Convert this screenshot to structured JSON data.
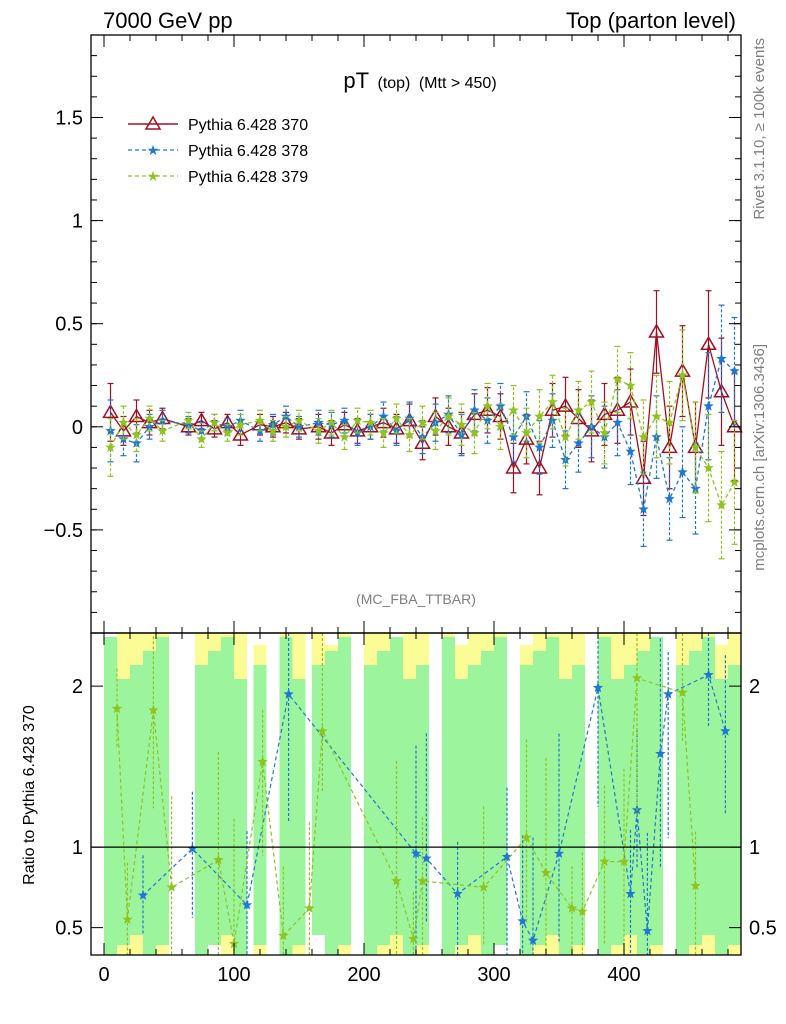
{
  "header": {
    "left": "7000 GeV pp",
    "right": "Top (parton level)"
  },
  "side_labels": {
    "rivet": "Rivet 3.1.10, ≥ 100k events",
    "mcplots": "mcplots.cern.ch [arXiv:1306.3436]"
  },
  "analysis_tag": "(MC_FBA_TTBAR)",
  "chart_data": [
    {
      "type": "line",
      "title": "pT (top) (Mtt > 450)",
      "title_main": "pT",
      "title_sub1": "(top)",
      "title_sub2": "(Mtt > 450)",
      "xlim": [
        -10,
        490
      ],
      "ylim": [
        -1.0,
        1.9
      ],
      "xticks": [
        0,
        100,
        200,
        300,
        400
      ],
      "yticks": [
        -0.5,
        0,
        0.5,
        1,
        1.5
      ],
      "ytick_labels": [
        "−0.5",
        "0",
        "0.5",
        "1",
        "1.5"
      ],
      "legend": "top-left",
      "series": [
        {
          "name": "Pythia 6.428 370",
          "color": "#a01020",
          "marker": "open-triangle",
          "x": [
            5,
            15,
            25,
            35,
            45,
            65,
            75,
            85,
            95,
            105,
            120,
            130,
            140,
            150,
            165,
            175,
            185,
            195,
            205,
            215,
            225,
            235,
            245,
            255,
            265,
            275,
            285,
            295,
            305,
            315,
            325,
            335,
            345,
            355,
            365,
            375,
            385,
            395,
            405,
            415,
            425,
            435,
            445,
            455,
            465,
            475,
            485
          ],
          "y": [
            0.07,
            -0.02,
            0.05,
            0.02,
            0.04,
            0.0,
            0.03,
            -0.01,
            0.02,
            -0.04,
            0.01,
            0.0,
            0.02,
            -0.01,
            0.0,
            -0.03,
            0.01,
            -0.02,
            0.0,
            0.02,
            -0.01,
            0.03,
            -0.08,
            0.05,
            0.0,
            -0.03,
            0.06,
            0.08,
            0.05,
            -0.2,
            -0.06,
            -0.2,
            0.08,
            0.1,
            0.04,
            -0.02,
            0.06,
            0.08,
            0.12,
            -0.25,
            0.46,
            -0.1,
            0.27,
            -0.1,
            0.4,
            0.17,
            0.0
          ],
          "yerr": [
            0.14,
            0.07,
            0.08,
            0.06,
            0.05,
            0.04,
            0.04,
            0.04,
            0.04,
            0.05,
            0.05,
            0.05,
            0.05,
            0.05,
            0.06,
            0.06,
            0.06,
            0.06,
            0.06,
            0.07,
            0.07,
            0.08,
            0.08,
            0.09,
            0.09,
            0.1,
            0.1,
            0.11,
            0.11,
            0.12,
            0.12,
            0.13,
            0.13,
            0.14,
            0.14,
            0.15,
            0.15,
            0.16,
            0.16,
            0.18,
            0.2,
            0.2,
            0.22,
            0.22,
            0.26,
            0.26,
            0.26
          ]
        },
        {
          "name": "Pythia 6.428 378",
          "color": "#1f77d4",
          "marker": "star",
          "x": [
            5,
            15,
            25,
            35,
            45,
            65,
            75,
            85,
            95,
            105,
            120,
            130,
            140,
            150,
            165,
            175,
            185,
            195,
            205,
            215,
            225,
            235,
            245,
            255,
            265,
            275,
            285,
            295,
            305,
            315,
            325,
            335,
            345,
            355,
            365,
            375,
            385,
            395,
            405,
            415,
            425,
            435,
            445,
            455,
            465,
            475,
            485
          ],
          "y": [
            -0.02,
            -0.06,
            -0.08,
            0.0,
            0.03,
            0.01,
            -0.02,
            0.02,
            0.0,
            0.03,
            -0.02,
            0.01,
            0.05,
            0.0,
            0.02,
            0.01,
            0.03,
            -0.03,
            0.0,
            0.05,
            -0.02,
            0.04,
            -0.05,
            0.02,
            0.06,
            -0.04,
            0.08,
            0.03,
            0.1,
            -0.05,
            0.05,
            -0.1,
            0.03,
            -0.16,
            -0.08,
            0.0,
            -0.05,
            0.02,
            -0.12,
            -0.4,
            -0.05,
            -0.35,
            -0.22,
            -0.3,
            0.1,
            0.33,
            0.27
          ],
          "yerr": [
            0.15,
            0.08,
            0.09,
            0.06,
            0.05,
            0.04,
            0.04,
            0.04,
            0.04,
            0.05,
            0.05,
            0.05,
            0.05,
            0.05,
            0.06,
            0.06,
            0.06,
            0.06,
            0.06,
            0.07,
            0.07,
            0.08,
            0.08,
            0.09,
            0.09,
            0.1,
            0.1,
            0.11,
            0.11,
            0.12,
            0.12,
            0.13,
            0.13,
            0.14,
            0.14,
            0.15,
            0.15,
            0.16,
            0.16,
            0.18,
            0.2,
            0.2,
            0.22,
            0.22,
            0.26,
            0.26,
            0.26
          ]
        },
        {
          "name": "Pythia 6.428 379",
          "color": "#8fc31f",
          "marker": "star",
          "x": [
            5,
            15,
            25,
            35,
            45,
            65,
            75,
            85,
            95,
            105,
            120,
            130,
            140,
            150,
            165,
            175,
            185,
            195,
            205,
            215,
            225,
            235,
            245,
            255,
            265,
            275,
            285,
            295,
            305,
            315,
            325,
            335,
            345,
            355,
            365,
            375,
            385,
            395,
            405,
            415,
            425,
            435,
            445,
            455,
            465,
            475,
            485
          ],
          "y": [
            -0.1,
            0.02,
            -0.04,
            0.04,
            -0.02,
            0.03,
            -0.06,
            0.02,
            -0.03,
            0.01,
            0.03,
            -0.02,
            0.0,
            0.03,
            -0.02,
            0.02,
            -0.05,
            0.03,
            0.02,
            -0.03,
            0.04,
            -0.04,
            0.02,
            -0.02,
            0.05,
            0.01,
            -0.03,
            0.1,
            0.0,
            0.08,
            -0.03,
            0.05,
            0.12,
            -0.05,
            0.08,
            0.12,
            -0.03,
            0.23,
            0.2,
            -0.05,
            0.05,
            0.02,
            0.25,
            -0.1,
            -0.2,
            -0.38,
            -0.27
          ],
          "yerr": [
            0.14,
            0.08,
            0.08,
            0.06,
            0.05,
            0.04,
            0.04,
            0.04,
            0.04,
            0.05,
            0.05,
            0.05,
            0.05,
            0.05,
            0.06,
            0.06,
            0.06,
            0.06,
            0.06,
            0.07,
            0.07,
            0.08,
            0.08,
            0.09,
            0.09,
            0.1,
            0.1,
            0.11,
            0.11,
            0.12,
            0.12,
            0.13,
            0.13,
            0.14,
            0.14,
            0.15,
            0.15,
            0.16,
            0.16,
            0.18,
            0.2,
            0.2,
            0.22,
            0.22,
            0.26,
            0.26,
            0.3
          ]
        }
      ]
    },
    {
      "type": "line",
      "ylabel": "Ratio to Pythia 6.428 370",
      "xlim": [
        -10,
        490
      ],
      "ylim": [
        0.33,
        2.33
      ],
      "xticks": [
        0,
        100,
        200,
        300,
        400
      ],
      "yticks": [
        0.5,
        1,
        2
      ],
      "ytick_labels": [
        "0.5",
        "1",
        "2"
      ],
      "reference": 1,
      "band_colors": {
        "inner": "#9cf59c",
        "outer": "#fbfc95"
      },
      "series": [
        {
          "name": "Pythia 6.428 378",
          "color": "#1f77d4",
          "x": [
            30,
            68,
            110,
            142,
            240,
            248,
            272,
            310,
            322,
            330,
            350,
            380,
            405,
            410,
            418,
            428,
            434,
            465,
            478
          ],
          "y": [
            0.7,
            0.99,
            0.64,
            1.95,
            0.96,
            0.93,
            0.71,
            0.94,
            0.54,
            0.42,
            0.96,
            1.99,
            0.71,
            1.23,
            0.48,
            1.58,
            1.95,
            2.07,
            1.72
          ]
        },
        {
          "name": "Pythia 6.428 379",
          "color": "#8fc31f",
          "x": [
            10,
            18,
            38,
            52,
            88,
            100,
            122,
            138,
            158,
            168,
            225,
            238,
            245,
            292,
            325,
            340,
            360,
            368,
            385,
            400,
            410,
            445,
            455
          ],
          "y": [
            1.86,
            0.55,
            1.85,
            0.75,
            0.92,
            0.4,
            1.53,
            0.45,
            0.62,
            1.72,
            0.79,
            0.43,
            0.79,
            0.75,
            1.06,
            0.84,
            0.62,
            0.6,
            0.91,
            0.91,
            2.05,
            1.96,
            0.76
          ]
        }
      ]
    }
  ]
}
